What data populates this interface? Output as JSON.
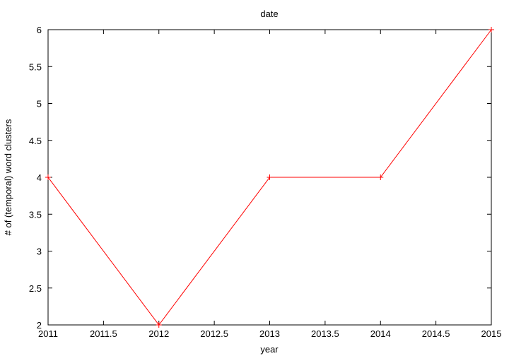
{
  "chart_data": {
    "type": "line",
    "title": "date",
    "xlabel": "year",
    "ylabel": "# of (temporal) word clusters",
    "xlim": [
      2011,
      2015
    ],
    "ylim": [
      2,
      6
    ],
    "xticks": [
      "2011",
      "2011.5",
      "2012",
      "2012.5",
      "2013",
      "2013.5",
      "2014",
      "2014.5",
      "2015"
    ],
    "yticks": [
      "2",
      "2.5",
      "3",
      "3.5",
      "4",
      "4.5",
      "5",
      "5.5",
      "6"
    ],
    "grid": false,
    "legend": "none",
    "series": [
      {
        "color": "#ff0000",
        "x": [
          2011,
          2012,
          2013,
          2014,
          2015
        ],
        "y": [
          4,
          2,
          4,
          4,
          6
        ]
      }
    ]
  }
}
